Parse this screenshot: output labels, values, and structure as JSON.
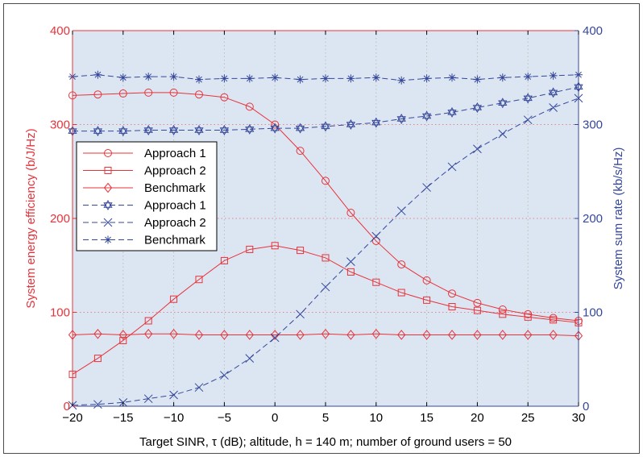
{
  "chart_data": {
    "type": "line",
    "xlabel": "Target SINR, τ (dB); altitude, h = 140 m;  number of ground users = 50",
    "ylabel_left": "System energy efficiency (b/J/Hz)",
    "ylabel_right": "System sum rate (kb/s/Hz)",
    "xlim": [
      -20,
      30
    ],
    "ylim_left": [
      0,
      400
    ],
    "ylim_right": [
      0,
      400
    ],
    "x_ticks": [
      "−20",
      "−15",
      "−10",
      "−5",
      "0",
      "5",
      "10",
      "15",
      "20",
      "25",
      "30"
    ],
    "y_ticks_left": [
      "0",
      "100",
      "200",
      "300",
      "400"
    ],
    "y_ticks_right": [
      "0",
      "100",
      "200",
      "300",
      "400"
    ],
    "grid": "dotted",
    "legend_position": "left-middle",
    "colors": {
      "left_axis": "#e8333a",
      "right_axis": "#35479a",
      "plot_background": "#dce6f2",
      "grid": "#bdbdbd"
    },
    "x": [
      -20,
      -17.5,
      -15,
      -12.5,
      -10,
      -7.5,
      -5,
      -2.5,
      0,
      2.5,
      5,
      7.5,
      10,
      12.5,
      15,
      17.5,
      20,
      22.5,
      25,
      27.5,
      30
    ],
    "series": [
      {
        "name": "Approach 1",
        "axis": "left",
        "marker": "circle",
        "style": "solid",
        "values": [
          331,
          332,
          333,
          334,
          334,
          332,
          329,
          319,
          300,
          272,
          240,
          206,
          176,
          151,
          134,
          120,
          110,
          103,
          98,
          94,
          91
        ]
      },
      {
        "name": "Approach 2",
        "axis": "left",
        "marker": "square",
        "style": "solid",
        "values": [
          34,
          51,
          70,
          91,
          114,
          135,
          155,
          167,
          171,
          166,
          158,
          143,
          132,
          121,
          113,
          106,
          102,
          98,
          95,
          92,
          89
        ]
      },
      {
        "name": "Benchmark",
        "axis": "left",
        "marker": "diamond",
        "style": "solid",
        "values": [
          76,
          77,
          76,
          77,
          77,
          76,
          76,
          76,
          76,
          76,
          77,
          76,
          77,
          76,
          76,
          76,
          76,
          76,
          76,
          76,
          75
        ]
      },
      {
        "name": "Approach 1",
        "axis": "right",
        "marker": "hexagram",
        "style": "dashed",
        "values": [
          293,
          293,
          293,
          294,
          294,
          294,
          294,
          295,
          296,
          296,
          298,
          300,
          302,
          306,
          309,
          313,
          318,
          323,
          328,
          334,
          340
        ]
      },
      {
        "name": "Approach 2",
        "axis": "right",
        "marker": "x",
        "style": "dashed",
        "values": [
          1,
          2,
          4,
          8,
          12,
          20,
          33,
          51,
          73,
          98,
          127,
          154,
          181,
          208,
          233,
          255,
          274,
          290,
          305,
          318,
          328
        ]
      },
      {
        "name": "Benchmark",
        "axis": "right",
        "marker": "asterisk",
        "style": "dashed",
        "values": [
          351,
          353,
          350,
          351,
          351,
          348,
          349,
          349,
          350,
          348,
          349,
          349,
          350,
          347,
          349,
          350,
          348,
          350,
          351,
          352,
          353
        ]
      }
    ]
  }
}
